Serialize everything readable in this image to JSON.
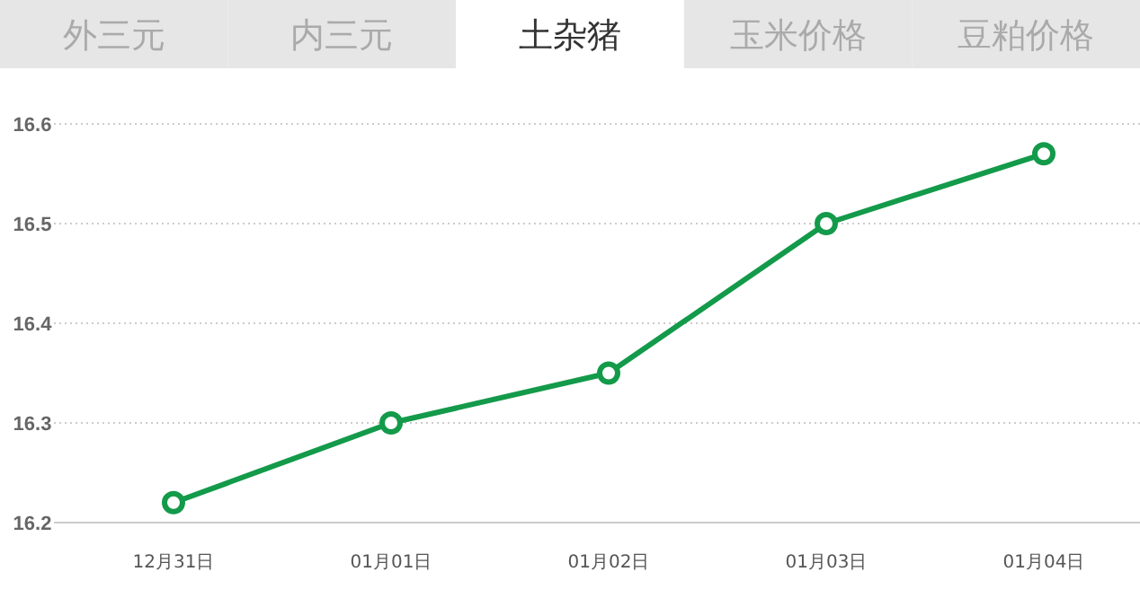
{
  "chart_data": {
    "type": "line",
    "title": "土杂猪",
    "annotations": [
      "外三元",
      "内三元",
      "玉米价格",
      "豆粕价格"
    ],
    "categories": [
      "12月31日",
      "01月01日",
      "01月02日",
      "01月03日",
      "01月04日"
    ],
    "series": [
      {
        "color": "#139a4a",
        "values": [
          16.22,
          16.3,
          16.35,
          16.5,
          16.57
        ]
      }
    ],
    "ylim": [
      16.2,
      16.6
    ],
    "yticks": [
      16.2,
      16.3,
      16.4,
      16.5,
      16.6
    ],
    "grid": "y",
    "marker": "circle",
    "line_style": "solid"
  }
}
